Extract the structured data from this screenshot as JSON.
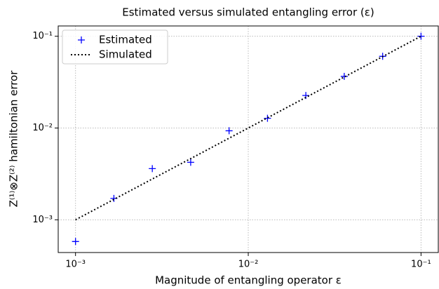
{
  "chart_data": {
    "type": "scatter-line",
    "title": "Estimated versus simulated entangling error (ε)",
    "x_label": "Magnitude of entangling operator ε",
    "y_label": "Z⁽¹⁾⊗Z⁽²⁾ hamiltonian error",
    "x": [
      0.001,
      0.001668,
      0.002783,
      0.004642,
      0.007743,
      0.01292,
      0.02154,
      0.03594,
      0.05995,
      0.1
    ],
    "series": [
      {
        "name": "Estimated",
        "color": "#0000ff",
        "style": "plus",
        "values": [
          0.00058,
          0.00171,
          0.00361,
          0.00423,
          0.00933,
          0.01277,
          0.0226,
          0.0365,
          0.0604,
          0.1
        ]
      },
      {
        "name": "Simulated",
        "color": "#000000",
        "style": "dotted",
        "values": [
          0.001,
          0.001668,
          0.002783,
          0.004642,
          0.007743,
          0.01292,
          0.02154,
          0.03594,
          0.05995,
          0.1
        ]
      }
    ],
    "xlim": [
      0.000794,
      0.1259
    ],
    "ylim": [
      0.00044,
      0.1294
    ],
    "xscale": "log",
    "yscale": "log",
    "xticks": [
      {
        "value": 0.001,
        "label": "10⁻³"
      },
      {
        "value": 0.01,
        "label": "10⁻²"
      },
      {
        "value": 0.1,
        "label": "10⁻¹"
      }
    ],
    "yticks": [
      {
        "value": 0.001,
        "label": "10⁻³"
      },
      {
        "value": 0.01,
        "label": "10⁻²"
      },
      {
        "value": 0.1,
        "label": "10⁻¹"
      }
    ],
    "grid": true,
    "legend": "upper-left"
  }
}
